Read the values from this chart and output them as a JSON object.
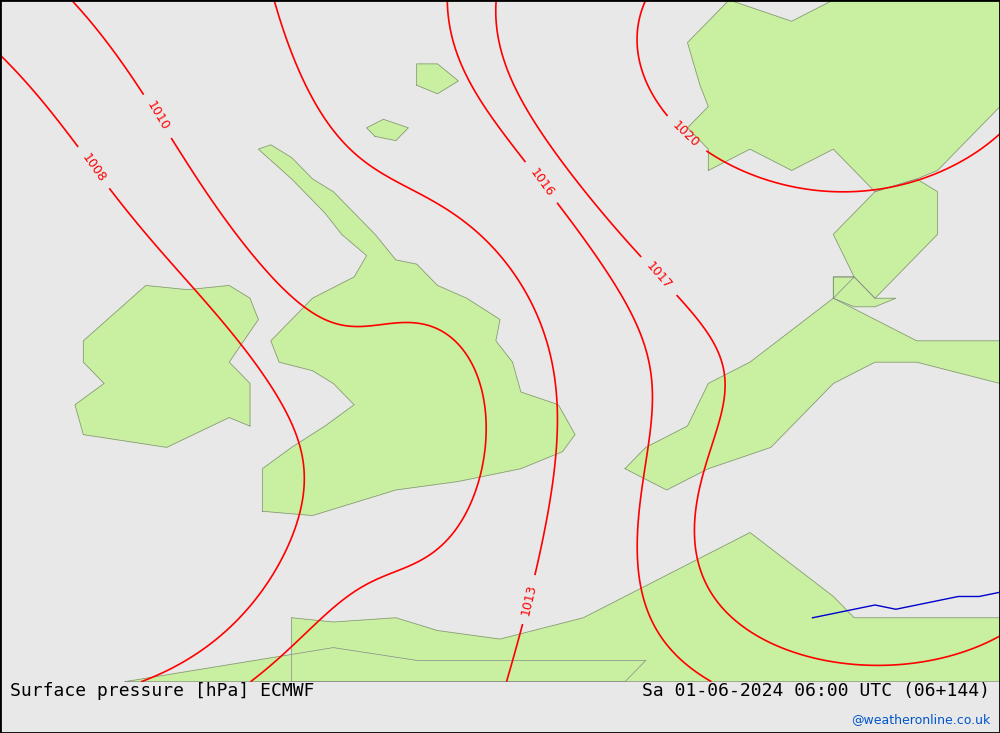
{
  "title_left": "Surface pressure [hPa] ECMWF",
  "title_right": "Sa 01-06-2024 06:00 UTC (06+144)",
  "watermark": "@weatheronline.co.uk",
  "background_color": "#e8e8e8",
  "land_color": "#c8f0a0",
  "sea_color": "#e8e8e8",
  "isobar_color_red": "#ff0000",
  "isobar_color_black": "#000000",
  "isobar_color_blue": "#0000cc",
  "font_size_title": 13,
  "font_size_label": 11,
  "xlim": [
    -12,
    12
  ],
  "ylim": [
    46,
    62
  ]
}
